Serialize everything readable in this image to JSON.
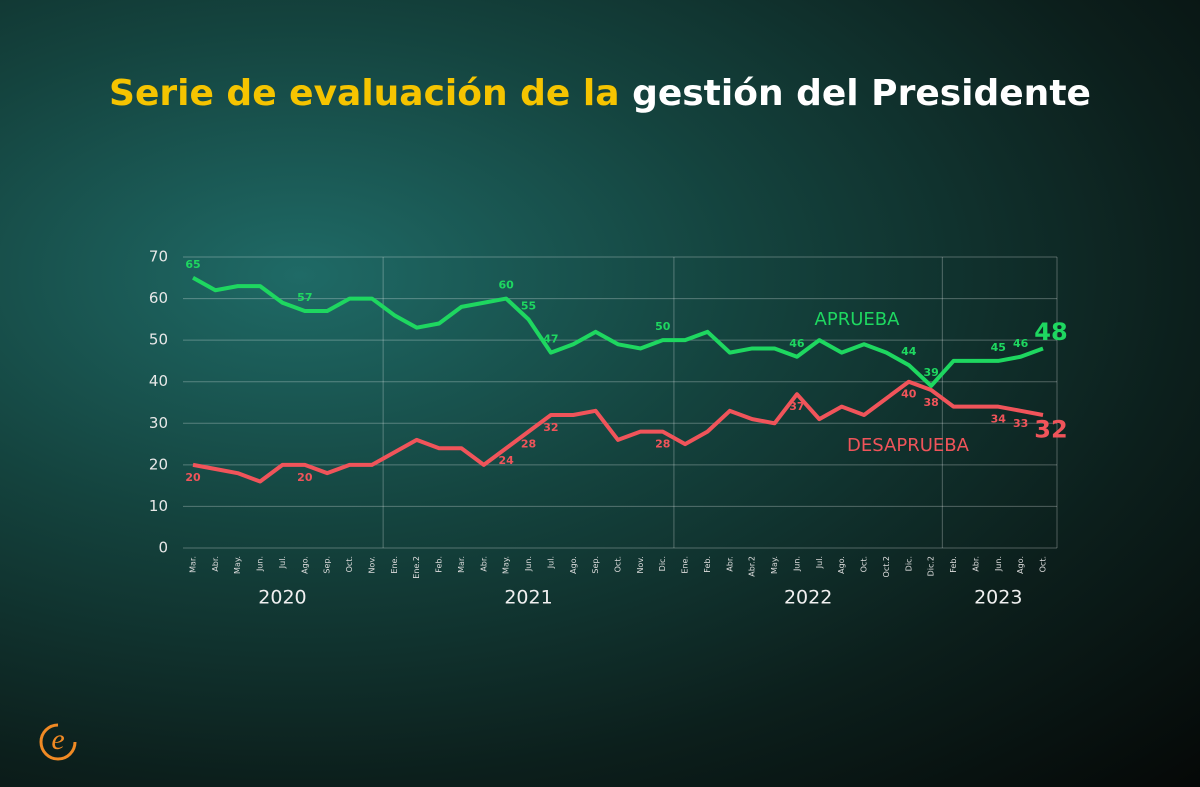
{
  "chart_data": {
    "type": "line",
    "title_parts": [
      "Serie de evaluación de la",
      "gestión del Presidente"
    ],
    "title_colors": [
      "#f5c400",
      "#ffffff"
    ],
    "categories": [
      "Mar.",
      "Abr.",
      "May.",
      "Jun.",
      "Jul.",
      "Ago.",
      "Sep.",
      "Oct.",
      "Nov.",
      "Ene.",
      "Ene.2",
      "Feb.",
      "Mar.",
      "Abr.",
      "May.",
      "Jun.",
      "Jul.",
      "Ago.",
      "Sep.",
      "Oct.",
      "Nov.",
      "Dic.",
      "Ene.",
      "Feb.",
      "Abr.",
      "Abr.2",
      "May.",
      "Jun.",
      "Jul.",
      "Ago.",
      "Oct.",
      "Oct.2",
      "Dic.",
      "Dic.2",
      "Feb.",
      "Abr.",
      "Jun.",
      "Ago.",
      "Oct."
    ],
    "x_groups": [
      {
        "label": "2020",
        "span": 9
      },
      {
        "label": "2021",
        "span": 13
      },
      {
        "label": "2022",
        "span": 12
      },
      {
        "label": "2023",
        "span": 5
      }
    ],
    "series": [
      {
        "name": "APRUEBA",
        "color": "#1ed760",
        "values": [
          65,
          62,
          63,
          63,
          59,
          57,
          57,
          60,
          60,
          56,
          53,
          54,
          58,
          59,
          60,
          55,
          47,
          49,
          52,
          49,
          48,
          50,
          50,
          52,
          47,
          48,
          48,
          46,
          50,
          47,
          49,
          47,
          44,
          39,
          45,
          45,
          45,
          46,
          48
        ],
        "value_labels": [
          "65",
          null,
          null,
          null,
          null,
          "57",
          null,
          null,
          null,
          null,
          null,
          null,
          null,
          null,
          "60",
          "55",
          "47",
          null,
          null,
          null,
          null,
          "50",
          null,
          null,
          null,
          null,
          null,
          "46",
          null,
          null,
          null,
          null,
          "44",
          "39",
          null,
          null,
          "45",
          "46",
          "48"
        ]
      },
      {
        "name": "DESAPRUEBA",
        "color": "#f0545a",
        "values": [
          20,
          19,
          18,
          16,
          20,
          20,
          18,
          20,
          20,
          23,
          26,
          24,
          24,
          20,
          24,
          28,
          32,
          32,
          33,
          26,
          28,
          28,
          25,
          28,
          33,
          31,
          30,
          37,
          31,
          34,
          32,
          36,
          40,
          38,
          34,
          34,
          34,
          33,
          32
        ],
        "value_labels": [
          "20",
          null,
          null,
          null,
          null,
          "20",
          null,
          null,
          null,
          null,
          null,
          null,
          null,
          null,
          "24",
          "28",
          "32",
          null,
          null,
          null,
          null,
          "28",
          null,
          null,
          null,
          null,
          null,
          "37",
          null,
          null,
          null,
          null,
          "40",
          "38",
          null,
          null,
          "34",
          "33",
          "32"
        ]
      }
    ],
    "ylim": [
      0,
      70
    ],
    "yticks": [
      0,
      10,
      20,
      30,
      40,
      50,
      60,
      70
    ],
    "grid": true
  }
}
